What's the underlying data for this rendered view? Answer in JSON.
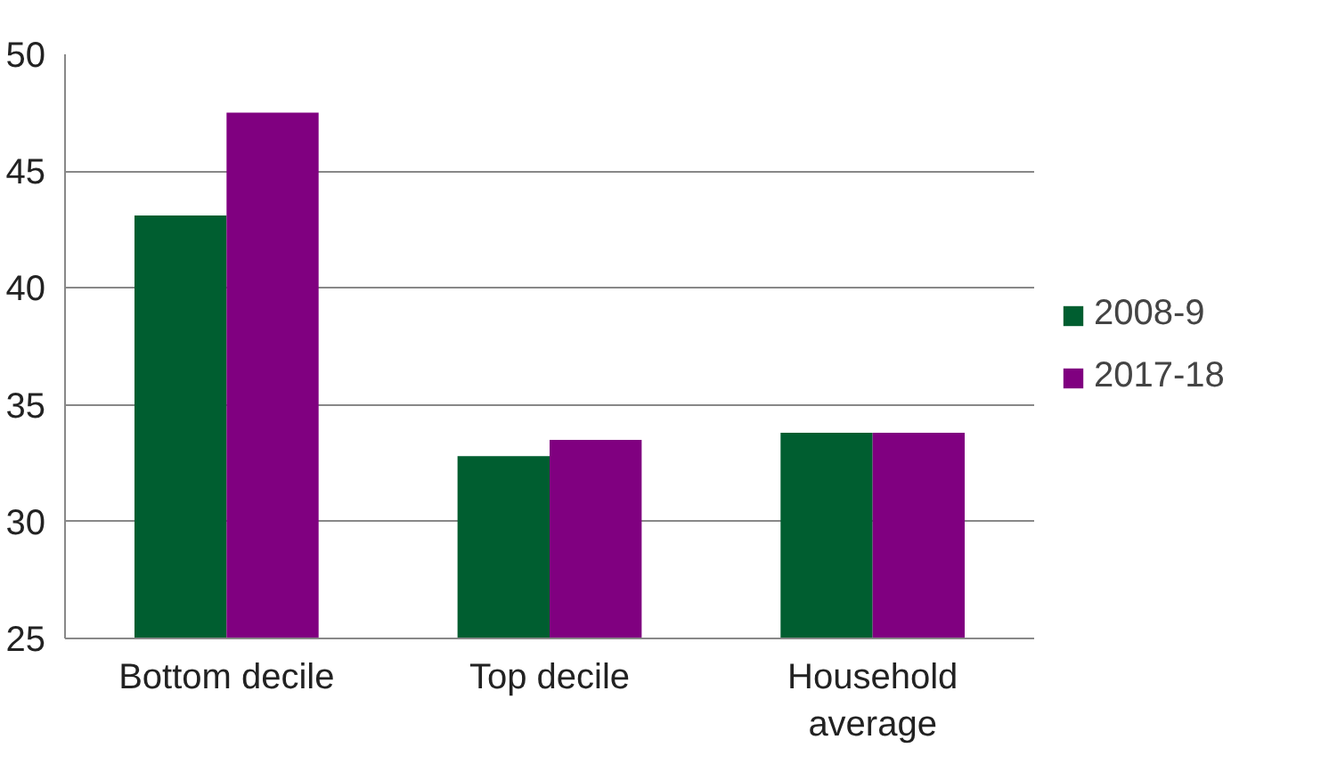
{
  "chart_data": {
    "type": "bar",
    "categories": [
      "Bottom decile",
      "Top decile",
      "Household\naverage"
    ],
    "series": [
      {
        "name": "2008-9",
        "color": "#005e30",
        "values": [
          43.1,
          32.8,
          33.8
        ]
      },
      {
        "name": "2017-18",
        "color": "#800080",
        "values": [
          47.5,
          33.5,
          33.8
        ]
      }
    ],
    "ylim": [
      25,
      50
    ],
    "yticks": [
      25,
      30,
      35,
      40,
      45,
      50
    ],
    "grid": "y",
    "legend": "right"
  }
}
